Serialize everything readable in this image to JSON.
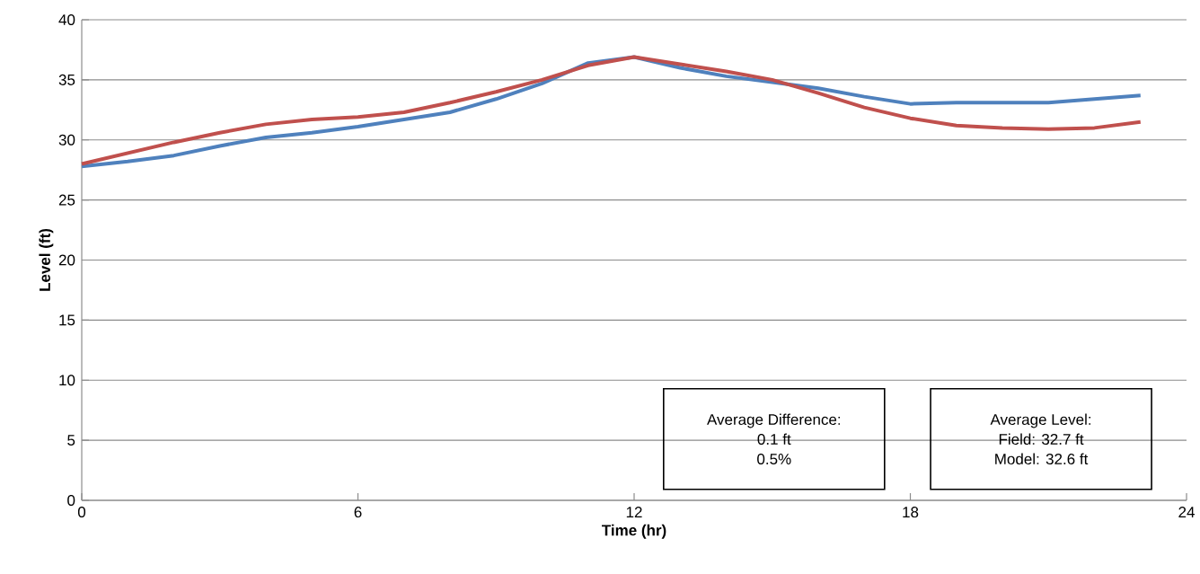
{
  "chart_data": {
    "type": "line",
    "xlabel": "Time (hr)",
    "ylabel": "Level (ft)",
    "x": [
      0,
      1,
      2,
      3,
      4,
      5,
      6,
      7,
      8,
      9,
      10,
      11,
      12,
      13,
      14,
      15,
      16,
      17,
      18,
      19,
      20,
      21,
      22,
      23
    ],
    "series": [
      {
        "color": "#4f81bd",
        "values": [
          27.8,
          28.2,
          28.7,
          29.5,
          30.2,
          30.6,
          31.1,
          31.7,
          32.3,
          33.4,
          34.7,
          36.4,
          36.9,
          36.0,
          35.3,
          34.8,
          34.3,
          33.6,
          33.0,
          33.1,
          33.1,
          33.1,
          33.4,
          33.7
        ]
      },
      {
        "color": "#c0504d",
        "values": [
          28.0,
          28.9,
          29.8,
          30.6,
          31.3,
          31.7,
          31.9,
          32.3,
          33.1,
          34.0,
          35.0,
          36.2,
          36.9,
          36.3,
          35.7,
          35.0,
          33.9,
          32.7,
          31.8,
          31.2,
          31.0,
          30.9,
          31.0,
          31.5
        ]
      }
    ],
    "xlim": [
      0,
      24
    ],
    "xticks": [
      0,
      6,
      12,
      18,
      24
    ],
    "ylim": [
      0,
      40
    ],
    "yticks": [
      0,
      5,
      10,
      15,
      20,
      25,
      30,
      35,
      40
    ],
    "grid": "y",
    "marker": "none",
    "line_style": "solid",
    "annotations": [
      "Average Difference:",
      "0.1 ft",
      "0.5%",
      "Average Level:",
      "Field: 32.7 ft",
      "Model: 32.6 ft"
    ]
  }
}
